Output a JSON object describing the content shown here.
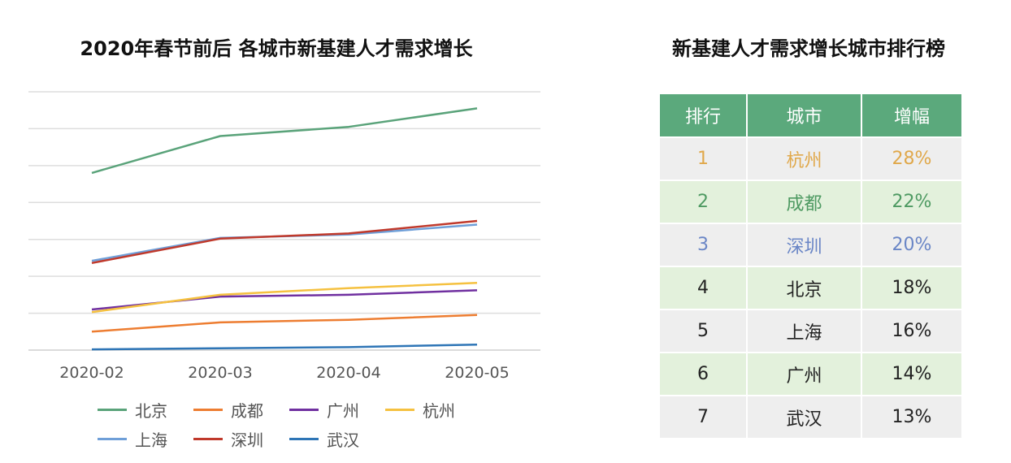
{
  "chart_data": {
    "type": "line",
    "title": "2020年春节前后 各城市新基建人才需求增长",
    "categories": [
      "2020-02",
      "2020-03",
      "2020-04",
      "2020-05"
    ],
    "ylim": [
      0,
      7
    ],
    "grid": true,
    "legend_position": "bottom",
    "series": [
      {
        "name": "北京",
        "color": "#5aa37a",
        "values": [
          4.8,
          5.8,
          6.05,
          6.55
        ]
      },
      {
        "name": "成都",
        "color": "#ed7d31",
        "values": [
          0.5,
          0.75,
          0.82,
          0.95
        ]
      },
      {
        "name": "广州",
        "color": "#7030a0",
        "values": [
          1.1,
          1.45,
          1.5,
          1.62
        ]
      },
      {
        "name": "杭州",
        "color": "#f5c140",
        "values": [
          1.03,
          1.5,
          1.68,
          1.82
        ]
      },
      {
        "name": "上海",
        "color": "#6f9fd8",
        "values": [
          2.42,
          3.04,
          3.13,
          3.4
        ]
      },
      {
        "name": "深圳",
        "color": "#c0392b",
        "values": [
          2.36,
          3.02,
          3.16,
          3.5
        ]
      },
      {
        "name": "武汉",
        "color": "#2e75b6",
        "values": [
          0.02,
          0.05,
          0.08,
          0.15
        ]
      }
    ]
  },
  "ranking": {
    "title": "新基建人才需求增长城市排行榜",
    "headers": [
      "排行",
      "城市",
      "增幅"
    ],
    "rows": [
      {
        "rank": "1",
        "city": "杭州",
        "increase": "28%",
        "color": "#e0a84a",
        "bg": "grey"
      },
      {
        "rank": "2",
        "city": "成都",
        "increase": "22%",
        "color": "#4e9a62",
        "bg": "green"
      },
      {
        "rank": "3",
        "city": "深圳",
        "increase": "20%",
        "color": "#6a86c6",
        "bg": "grey"
      },
      {
        "rank": "4",
        "city": "北京",
        "increase": "18%",
        "color": "#222222",
        "bg": "green"
      },
      {
        "rank": "5",
        "city": "上海",
        "increase": "16%",
        "color": "#222222",
        "bg": "grey"
      },
      {
        "rank": "6",
        "city": "广州",
        "increase": "14%",
        "color": "#222222",
        "bg": "green"
      },
      {
        "rank": "7",
        "city": "武汉",
        "increase": "13%",
        "color": "#222222",
        "bg": "grey"
      }
    ]
  }
}
